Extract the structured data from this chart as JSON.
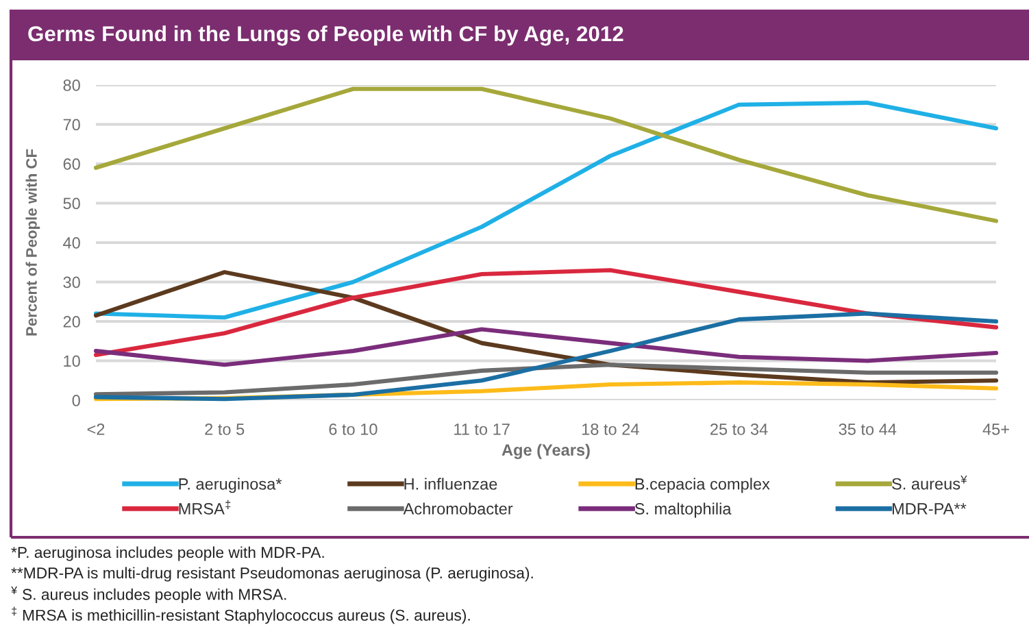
{
  "chart_data": {
    "type": "line",
    "title": "Germs Found in the Lungs of People with CF by Age, 2012",
    "xlabel": "Age (Years)",
    "ylabel": "Percent of People with CF",
    "categories": [
      "<2",
      "2 to 5",
      "6 to 10",
      "11 to 17",
      "18 to 24",
      "25 to 34",
      "35 to 44",
      "45+"
    ],
    "ylim": [
      0,
      80
    ],
    "yticks": [
      0,
      10,
      20,
      30,
      40,
      50,
      60,
      70,
      80
    ],
    "grid": "y",
    "legend": "bottom",
    "marker": "none",
    "line_style": "solid",
    "series": [
      {
        "name": "P. aeruginosa*",
        "color": "#1fb0e6",
        "values": [
          22,
          21,
          30,
          44,
          62,
          75,
          75.5,
          69
        ]
      },
      {
        "name": "H. influenzae",
        "color": "#5c3a1e",
        "values": [
          21.5,
          32.5,
          26,
          14.5,
          9,
          6.5,
          4.5,
          5
        ]
      },
      {
        "name": "B.cepacia complex",
        "color": "#fdbb1a",
        "values": [
          0.3,
          0.5,
          1.4,
          2.3,
          4,
          4.5,
          4,
          3
        ]
      },
      {
        "name": "S. aureus$^{¥}$",
        "color": "#a5a83a",
        "values": [
          59,
          69,
          79,
          79,
          71.5,
          61,
          52,
          45.5
        ]
      },
      {
        "name": "MRSA$^{‡}$",
        "color": "#d9283e",
        "values": [
          11.5,
          17,
          26,
          32,
          33,
          27.5,
          22,
          18.5
        ]
      },
      {
        "name": "Achromobacter",
        "color": "#6b6b6b",
        "values": [
          1.5,
          2,
          4,
          7.5,
          9,
          8,
          7,
          7
        ]
      },
      {
        "name": "S. maltophilia",
        "color": "#7b2d7b",
        "values": [
          12.5,
          9,
          12.5,
          18,
          14.5,
          11,
          10,
          12
        ]
      },
      {
        "name": "MDR-PA**",
        "color": "#1b6fa3",
        "values": [
          0.8,
          0.3,
          1.4,
          5,
          12.5,
          20.5,
          22,
          20
        ]
      }
    ],
    "annotations": [
      "*P. aeruginosa includes people with MDR-PA.",
      "**MDR-PA is multi-drug resistant Pseudomonas aeruginosa (P. aeruginosa).",
      "$^{¥}$ S. aureus includes people with MRSA.",
      "$^{‡}$ MRSA is methicillin-resistant Staphylococcus aureus (S. aureus)."
    ]
  }
}
